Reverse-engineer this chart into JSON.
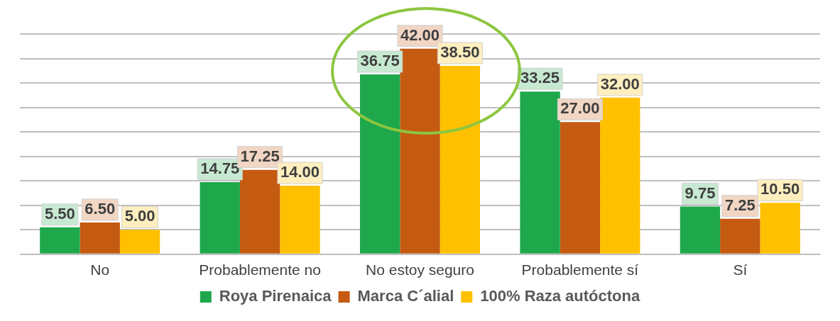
{
  "chart_data": {
    "type": "bar",
    "categories": [
      "No",
      "Probablemente no",
      "No estoy seguro",
      "Probablemente sí",
      "Sí"
    ],
    "series": [
      {
        "name": "Roya Pirenaica",
        "color": "#1ea84b",
        "values": [
          5.5,
          14.75,
          36.75,
          33.25,
          9.75
        ],
        "value_labels": [
          "5.50",
          "14.75",
          "36.75",
          "33.25",
          "9.75"
        ]
      },
      {
        "name": "Marca C´alial",
        "color": "#c55a11",
        "values": [
          6.5,
          17.25,
          42,
          27,
          7.25
        ],
        "value_labels": [
          "6.50",
          "17.25",
          "42.00",
          "27.00",
          "7.25"
        ]
      },
      {
        "name": "100% Raza autóctona",
        "color": "#ffc000",
        "values": [
          5,
          14,
          38.5,
          32,
          10.5
        ],
        "value_labels": [
          "5.00",
          "14.00",
          "38.50",
          "32.00",
          "10.50"
        ]
      }
    ],
    "ylim": [
      0,
      45
    ],
    "yticks": [
      {
        "value": 0,
        "label": null
      },
      {
        "value": 5,
        "label": null
      },
      {
        "value": 10,
        "label": null
      },
      {
        "value": 15,
        "label": null
      },
      {
        "value": 20,
        "label": null
      },
      {
        "value": 25,
        "label": null
      },
      {
        "value": 30,
        "label": null
      },
      {
        "value": 35,
        "label": null
      },
      {
        "value": 40,
        "label": null
      },
      {
        "value": 45,
        "label": null
      }
    ],
    "grid": "y",
    "legend": "bottom"
  }
}
